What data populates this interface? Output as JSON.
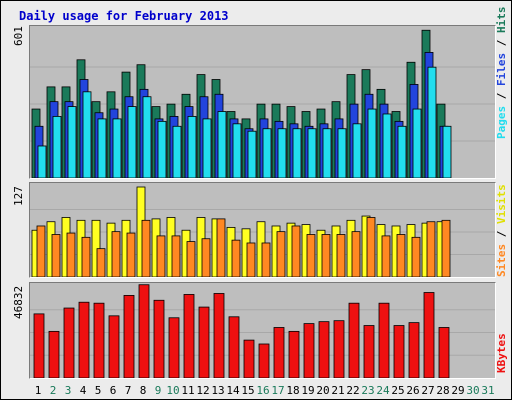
{
  "title": "Daily usage for February 2013",
  "colors": {
    "hits": "#1a7a5a",
    "files": "#2244dd",
    "pages": "#22ddee",
    "visits": "#ffff22",
    "sites": "#ff8822",
    "kbytes": "#ee1111",
    "weekday_label": "#000000",
    "weekend_label": "#1a7a5a"
  },
  "chart_data": [
    {
      "type": "bar",
      "title": "Daily usage for February 2013",
      "right_label": {
        "hits": "Hits",
        "files": "Files",
        "pages": "Pages"
      },
      "max_label": "601",
      "ylim": [
        0,
        601
      ],
      "categories": [
        "1",
        "2",
        "3",
        "4",
        "5",
        "6",
        "7",
        "8",
        "9",
        "10",
        "11",
        "12",
        "13",
        "14",
        "15",
        "16",
        "17",
        "18",
        "19",
        "20",
        "21",
        "22",
        "23",
        "24",
        "25",
        "26",
        "27",
        "28",
        "29",
        "30",
        "31"
      ],
      "series": [
        {
          "name": "Hits",
          "values": [
            280,
            370,
            370,
            480,
            310,
            350,
            430,
            460,
            290,
            300,
            340,
            420,
            400,
            270,
            240,
            300,
            300,
            290,
            270,
            280,
            310,
            420,
            440,
            360,
            270,
            470,
            600,
            300,
            0,
            0,
            0
          ]
        },
        {
          "name": "Files",
          "values": [
            210,
            310,
            310,
            400,
            265,
            280,
            330,
            360,
            240,
            250,
            290,
            330,
            340,
            240,
            200,
            240,
            230,
            220,
            210,
            220,
            240,
            300,
            340,
            300,
            230,
            380,
            510,
            210,
            0,
            0,
            0
          ]
        },
        {
          "name": "Pages",
          "values": [
            130,
            250,
            290,
            350,
            240,
            240,
            290,
            330,
            230,
            210,
            250,
            240,
            270,
            220,
            190,
            200,
            200,
            200,
            200,
            200,
            200,
            220,
            280,
            260,
            210,
            280,
            450,
            210,
            0,
            0,
            0
          ]
        }
      ]
    },
    {
      "type": "bar",
      "right_label": {
        "visits": "Visits",
        "sites": "Sites"
      },
      "max_label": "127",
      "ylim": [
        0,
        127
      ],
      "categories": [
        "1",
        "2",
        "3",
        "4",
        "5",
        "6",
        "7",
        "8",
        "9",
        "10",
        "11",
        "12",
        "13",
        "14",
        "15",
        "16",
        "17",
        "18",
        "19",
        "20",
        "21",
        "22",
        "23",
        "24",
        "25",
        "26",
        "27",
        "28",
        "29",
        "30",
        "31"
      ],
      "series": [
        {
          "name": "Visits",
          "values": [
            66,
            78,
            84,
            80,
            80,
            76,
            80,
            127,
            82,
            84,
            66,
            84,
            82,
            70,
            68,
            78,
            72,
            76,
            74,
            66,
            72,
            80,
            86,
            74,
            72,
            74,
            76,
            78,
            0,
            0,
            0
          ]
        },
        {
          "name": "Sites",
          "values": [
            72,
            60,
            62,
            56,
            40,
            64,
            62,
            80,
            58,
            58,
            50,
            54,
            82,
            52,
            48,
            48,
            64,
            72,
            60,
            60,
            60,
            64,
            84,
            58,
            60,
            56,
            78,
            80,
            0,
            0,
            0
          ]
        }
      ]
    },
    {
      "type": "bar",
      "right_label": {
        "kbytes": "KBytes"
      },
      "max_label": "46832",
      "ylim": [
        0,
        46832
      ],
      "categories": [
        "1",
        "2",
        "3",
        "4",
        "5",
        "6",
        "7",
        "8",
        "9",
        "10",
        "11",
        "12",
        "13",
        "14",
        "15",
        "16",
        "17",
        "18",
        "19",
        "20",
        "21",
        "22",
        "23",
        "24",
        "25",
        "26",
        "27",
        "28",
        "29",
        "30",
        "31"
      ],
      "series": [
        {
          "name": "KBytes",
          "values": [
            33000,
            24000,
            36000,
            39000,
            38500,
            32000,
            42500,
            48000,
            40000,
            31000,
            43000,
            36500,
            43500,
            31500,
            19500,
            17500,
            26000,
            24000,
            28000,
            29000,
            29500,
            38500,
            27000,
            38500,
            27000,
            28500,
            44000,
            26000,
            0,
            0,
            0
          ]
        }
      ]
    }
  ],
  "weekend_days": [
    "2",
    "3",
    "9",
    "10",
    "16",
    "17",
    "23",
    "24",
    "30",
    "31"
  ],
  "x_labels": [
    "1",
    "2",
    "3",
    "4",
    "5",
    "6",
    "7",
    "8",
    "9",
    "10",
    "11",
    "12",
    "13",
    "14",
    "15",
    "16",
    "17",
    "18",
    "19",
    "20",
    "21",
    "22",
    "23",
    "24",
    "25",
    "26",
    "27",
    "28",
    "29",
    "30",
    "31"
  ]
}
